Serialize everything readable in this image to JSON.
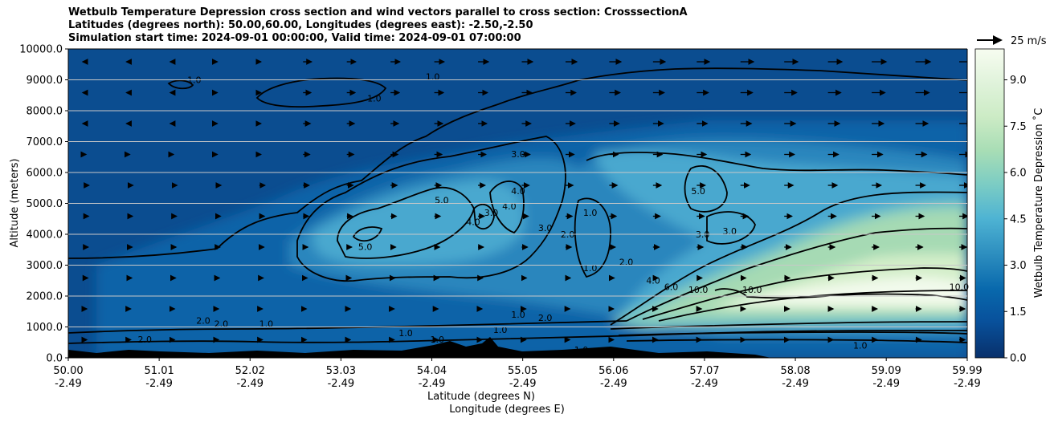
{
  "title_lines": [
    "Wetbulb Temperature Depression cross section and wind vectors parallel to cross section: CrosssectionA",
    "Latitudes (degrees north): 50.00,60.00, Longitudes (degrees east): -2.50,-2.50",
    "Simulation start time: 2024-09-01 00:00:00, Valid time: 2024-09-01 07:00:00"
  ],
  "chart_data": {
    "type": "heatmap",
    "title": "Wetbulb Temperature Depression cross section and wind vectors parallel to cross section: CrosssectionA",
    "xlabel": "Latitude (degrees N)",
    "xlabel2": "Longitude (degrees E)",
    "ylabel": "Altitude (meters)",
    "xlim": [
      50.0,
      59.99
    ],
    "ylim": [
      0,
      10000
    ],
    "x_ticks": [
      {
        "lat": "50.00",
        "lon": "-2.49"
      },
      {
        "lat": "51.01",
        "lon": "-2.49"
      },
      {
        "lat": "52.02",
        "lon": "-2.49"
      },
      {
        "lat": "53.03",
        "lon": "-2.49"
      },
      {
        "lat": "54.04",
        "lon": "-2.49"
      },
      {
        "lat": "55.05",
        "lon": "-2.49"
      },
      {
        "lat": "56.06",
        "lon": "-2.49"
      },
      {
        "lat": "57.07",
        "lon": "-2.49"
      },
      {
        "lat": "58.08",
        "lon": "-2.49"
      },
      {
        "lat": "59.09",
        "lon": "-2.49"
      },
      {
        "lat": "59.99",
        "lon": "-2.49"
      }
    ],
    "y_ticks": [
      "0.0",
      "1000.0",
      "2000.0",
      "3000.0",
      "4000.0",
      "5000.0",
      "6000.0",
      "7000.0",
      "8000.0",
      "9000.0",
      "10000.0"
    ],
    "grid": "horizontal",
    "colorbar": {
      "label": "Wetbulb Temperature Depression ˚C",
      "ticks": [
        "0.0",
        "1.5",
        "3.0",
        "4.5",
        "6.0",
        "7.5",
        "9.0"
      ],
      "range": [
        0,
        10
      ],
      "colormap": [
        "#08306b",
        "#08519c",
        "#0868ac",
        "#2b8cbe",
        "#4eb3d3",
        "#7bccc4",
        "#a8ddb5",
        "#ccebc5",
        "#e0f3db",
        "#f7fcf0"
      ]
    },
    "wind_key": {
      "label": "25 m/s",
      "speed": 25
    },
    "contour_labels": [
      {
        "text": "1.0",
        "x": 51.4,
        "y": 8900
      },
      {
        "text": "1.0",
        "x": 53.4,
        "y": 8300
      },
      {
        "text": "1.0",
        "x": 54.05,
        "y": 9000
      },
      {
        "text": "3.0",
        "x": 55.0,
        "y": 6500
      },
      {
        "text": "5.0",
        "x": 54.15,
        "y": 5000
      },
      {
        "text": "4.0",
        "x": 55.0,
        "y": 5300
      },
      {
        "text": "4.0",
        "x": 54.5,
        "y": 4300
      },
      {
        "text": "3.0",
        "x": 54.7,
        "y": 4600
      },
      {
        "text": "4.0",
        "x": 54.9,
        "y": 4800
      },
      {
        "text": "3.0",
        "x": 55.3,
        "y": 4100
      },
      {
        "text": "5.0",
        "x": 53.3,
        "y": 3500
      },
      {
        "text": "1.0",
        "x": 55.8,
        "y": 4600
      },
      {
        "text": "2.0",
        "x": 55.55,
        "y": 3900
      },
      {
        "text": "2.0",
        "x": 56.2,
        "y": 3000
      },
      {
        "text": "1.0",
        "x": 55.8,
        "y": 2800
      },
      {
        "text": "5.0",
        "x": 57.0,
        "y": 5300
      },
      {
        "text": "3.0",
        "x": 57.05,
        "y": 3900
      },
      {
        "text": "3.0",
        "x": 57.35,
        "y": 4000
      },
      {
        "text": "4.0",
        "x": 56.5,
        "y": 2400
      },
      {
        "text": "6.0",
        "x": 56.7,
        "y": 2200
      },
      {
        "text": "10.0",
        "x": 57.0,
        "y": 2100
      },
      {
        "text": "10.0",
        "x": 57.6,
        "y": 2100
      },
      {
        "text": "10.0",
        "x": 59.9,
        "y": 2200
      },
      {
        "text": "1.0",
        "x": 55.0,
        "y": 1300
      },
      {
        "text": "2.0",
        "x": 55.3,
        "y": 1200
      },
      {
        "text": "2.0",
        "x": 51.5,
        "y": 1100
      },
      {
        "text": "2.0",
        "x": 51.7,
        "y": 1000
      },
      {
        "text": "1.0",
        "x": 52.2,
        "y": 1000
      },
      {
        "text": "2.0",
        "x": 50.85,
        "y": 500
      },
      {
        "text": "1.0",
        "x": 53.75,
        "y": 700
      },
      {
        "text": "1.0",
        "x": 54.1,
        "y": 500
      },
      {
        "text": "1.0",
        "x": 54.8,
        "y": 800
      },
      {
        "text": "1.0",
        "x": 55.7,
        "y": 150
      },
      {
        "text": "1.0",
        "x": 58.8,
        "y": 300
      }
    ]
  }
}
